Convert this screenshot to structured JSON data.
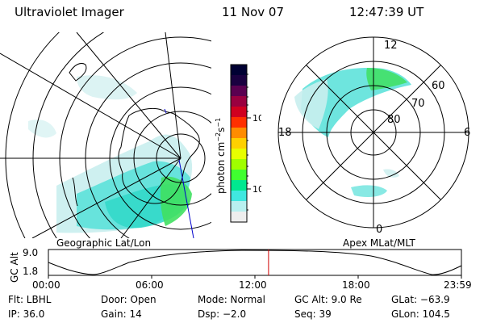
{
  "header": {
    "instrument": "Ultraviolet Imager",
    "date": "11 Nov 07",
    "time": "12:47:39 UT"
  },
  "geo_panel": {
    "caption": "Geographic Lat/Lon"
  },
  "apex_panel": {
    "caption": "Apex MLat/MLT",
    "mlt_labels": [
      "12",
      "18",
      "6",
      "0"
    ],
    "lat_labels": [
      "60",
      "70",
      "80"
    ]
  },
  "colorbar": {
    "unit_label": "photon cm",
    "unit_exp1": "−2",
    "unit_mid": "s",
    "unit_exp2": "−1",
    "tick_labels": [
      "100",
      "10"
    ],
    "colors": [
      "#000033",
      "#1a0040",
      "#5a0050",
      "#9a0040",
      "#d00020",
      "#ff3000",
      "#ff8c00",
      "#ffd000",
      "#e8ff00",
      "#a0ff00",
      "#40ff30",
      "#00e890",
      "#40e8e0",
      "#b8f0f0",
      "#eeeeee"
    ]
  },
  "altitude_plot": {
    "ylabel": "GC Alt",
    "yticks": [
      "9.0",
      "1.8"
    ],
    "xticks": [
      "00:00",
      "06:00",
      "12:00",
      "18:00",
      "23:59"
    ],
    "current_time_hours": 12.79,
    "marker_color": "#d00000"
  },
  "info": {
    "flt": "Flt: LBHL",
    "door": "Door: Open",
    "mode": "Mode: Normal",
    "gc_alt": "GC Alt: 9.0 Re",
    "glat": "GLat: −63.9",
    "ip": "IP: 36.0",
    "gain": "Gain: 14",
    "dsp": "Dsp:    −2.0",
    "seq": "Seq: 39",
    "glon": "GLon: 104.5"
  }
}
